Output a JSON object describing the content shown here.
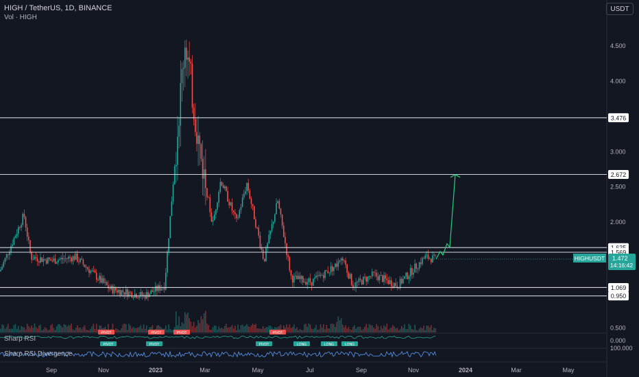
{
  "header": {
    "symbol_line": "HIGH / TetherUS, 1D, BINANCE",
    "volume_line": "Vol · HIGH",
    "currency_button": "USDT"
  },
  "indicators": {
    "rsi_label": "Sharp RSI",
    "divergence_label": "Sharp RSI Divergence",
    "rsi_axis_value": "0.000",
    "div_axis_value": "100.000"
  },
  "price_tag": {
    "symbol": "HIGHUSDT",
    "price": "1.472",
    "countdown": "14:16:42"
  },
  "colors": {
    "background": "#131722",
    "up": "#26a69a",
    "down": "#ef5350",
    "level_line": "#d1d4dc",
    "projection": "#26d07c"
  },
  "chart_data": {
    "type": "candlestick",
    "title": "HIGH / TetherUS, 1D, BINANCE",
    "y_axis_ticks": [
      "4.500",
      "4.000",
      "3.500",
      "3.000",
      "2.500",
      "2.000",
      "0.500"
    ],
    "x_axis_ticks": [
      "Sep",
      "Nov",
      "2023",
      "Mar",
      "May",
      "Jul",
      "Sep",
      "Nov",
      "2024",
      "Mar",
      "May"
    ],
    "horizontal_levels": [
      3.476,
      2.672,
      1.635,
      1.569,
      1.069,
      0.95
    ],
    "level_labels": [
      "3.476",
      "2.672",
      "1.635",
      "1.569",
      "1.069",
      "0.950"
    ],
    "last_price": 1.472,
    "price_path": [
      {
        "x": "Jul 2022",
        "y": 1.3
      },
      {
        "x": "Aug 2022",
        "y": 2.1
      },
      {
        "x": "Aug 2022",
        "y": 1.5
      },
      {
        "x": "Sep 2022",
        "y": 1.45
      },
      {
        "x": "Oct 2022",
        "y": 1.5
      },
      {
        "x": "Nov 2022",
        "y": 1.05
      },
      {
        "x": "Dec 2022",
        "y": 0.95
      },
      {
        "x": "Jan 2023",
        "y": 1.1
      },
      {
        "x": "Feb 2023",
        "y": 4.6
      },
      {
        "x": "Feb 2023",
        "y": 3.1
      },
      {
        "x": "Mar 2023",
        "y": 1.95
      },
      {
        "x": "Mar 2023",
        "y": 2.6
      },
      {
        "x": "Apr 2023",
        "y": 2.0
      },
      {
        "x": "May 2023",
        "y": 2.55
      },
      {
        "x": "May 2023",
        "y": 1.45
      },
      {
        "x": "Jun 2023",
        "y": 2.3
      },
      {
        "x": "Jun 2023",
        "y": 1.2
      },
      {
        "x": "Jul 2023",
        "y": 1.15
      },
      {
        "x": "Aug 2023",
        "y": 1.45
      },
      {
        "x": "Aug 2023",
        "y": 1.1
      },
      {
        "x": "Sep 2023",
        "y": 1.25
      },
      {
        "x": "Oct 2023",
        "y": 1.1
      },
      {
        "x": "Nov 2023",
        "y": 1.5
      },
      {
        "x": "Nov 2023",
        "y": 1.472
      }
    ],
    "projection_path": [
      {
        "x": "Nov 2023",
        "y": 1.472
      },
      {
        "x": "Nov 2023",
        "y": 1.69
      },
      {
        "x": "Dec 2023",
        "y": 2.67
      }
    ],
    "signal_labels_rsi": [
      "PIVOT",
      "PIVOT",
      "PIVOT",
      "PIVOT"
    ],
    "signal_labels_div": [
      "PIVOT",
      "PIVOT",
      "PIVOT",
      "LONG",
      "LONG",
      "LONG"
    ]
  }
}
